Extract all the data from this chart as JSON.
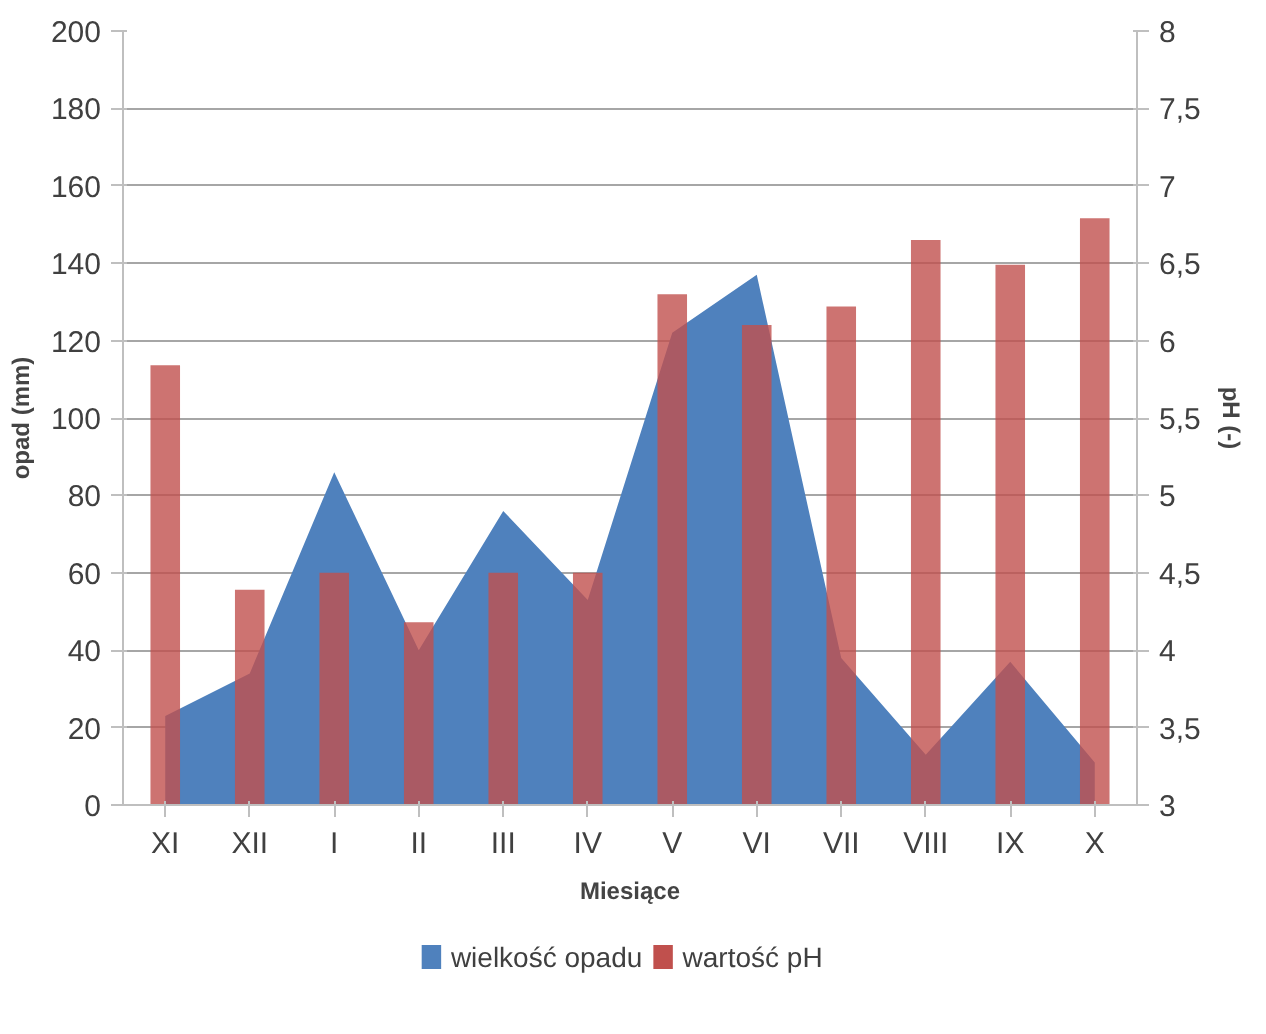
{
  "chart_data": {
    "type": "bar",
    "xlabel": "Miesiące",
    "ylabel": "opad (mm)",
    "y2label": "pH (-)",
    "categories": [
      "XI",
      "XII",
      "I",
      "II",
      "III",
      "IV",
      "V",
      "VI",
      "VII",
      "VIII",
      "IX",
      "X"
    ],
    "series": [
      {
        "name": "wielkość opadu",
        "type": "area",
        "color": "#4f81bd",
        "values": [
          23,
          34,
          86,
          40,
          76,
          53,
          122,
          137,
          38,
          13,
          37,
          11
        ]
      },
      {
        "name": "wartość pH",
        "axis": "y2",
        "color": "#c0504d",
        "values": [
          5.84,
          4.39,
          4.5,
          4.18,
          4.5,
          4.5,
          6.3,
          6.1,
          6.22,
          6.65,
          6.49,
          6.79
        ]
      }
    ],
    "ylim": [
      0,
      200
    ],
    "yticks": [
      0,
      20,
      40,
      60,
      80,
      100,
      120,
      140,
      160,
      180,
      200
    ],
    "y2lim": [
      3,
      8
    ],
    "y2ticks": [
      3,
      {
        "value": 3.5,
        "label": "3,5"
      },
      4,
      {
        "value": 4.5,
        "label": "4,5"
      },
      5,
      {
        "value": 5.5,
        "label": "5,5"
      },
      6,
      {
        "value": 6.5,
        "label": "6,5"
      },
      7,
      {
        "value": 7.5,
        "label": "7,5"
      },
      8
    ],
    "grid": "y",
    "legend": "bottom"
  }
}
